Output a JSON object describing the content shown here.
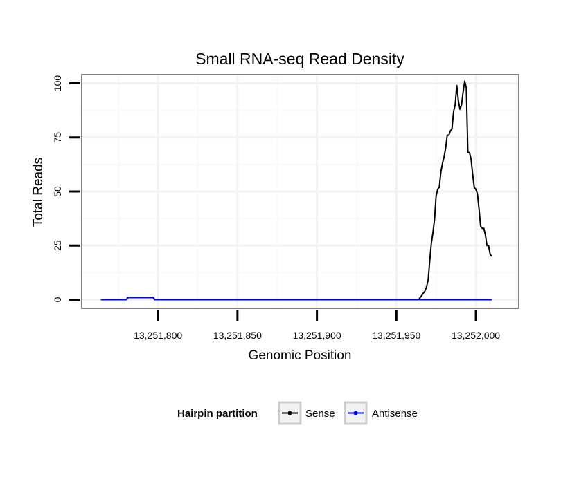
{
  "chart_data": {
    "type": "line",
    "title": "Small RNA-seq Read Density",
    "xlabel": "Genomic Position",
    "ylabel": "Total Reads",
    "xlim": [
      13251752,
      13252027
    ],
    "ylim": [
      -4,
      104
    ],
    "x_ticks": [
      13251800,
      13251850,
      13251900,
      13251950,
      13252000
    ],
    "x_tick_labels": [
      "13,251,800",
      "13,251,850",
      "13,251,900",
      "13,251,950",
      "13,252,000"
    ],
    "y_ticks": [
      0,
      25,
      50,
      75,
      100
    ],
    "y_tick_labels": [
      "0",
      "25",
      "50",
      "75",
      "100"
    ],
    "grid": true,
    "legend": {
      "title": "Hairpin partition",
      "placement": "bottom",
      "entries": [
        "Sense",
        "Antisense"
      ]
    },
    "series": [
      {
        "name": "Sense",
        "color": "#000000",
        "x": [
          13251764,
          13251780,
          13251781,
          13251797,
          13251798,
          13251964,
          13251965,
          13251966,
          13251967,
          13251968,
          13251969,
          13251970,
          13251971,
          13251972,
          13251973,
          13251974,
          13251975,
          13251976,
          13251977,
          13251978,
          13251979,
          13251980,
          13251981,
          13251982,
          13251983,
          13251984,
          13251985,
          13251986,
          13251987,
          13251988,
          13251989,
          13251990,
          13251991,
          13251992,
          13251993,
          13251994,
          13251995,
          13251996,
          13251997,
          13251998,
          13251999,
          13252000,
          13252001,
          13252002,
          13252003,
          13252004,
          13252005,
          13252006,
          13252007,
          13252008,
          13252009,
          13252010
        ],
        "y": [
          0,
          0,
          1,
          1,
          0,
          0,
          1,
          2,
          3,
          4,
          6,
          9,
          18,
          26,
          31,
          37,
          48,
          51,
          52,
          59,
          63,
          66,
          70,
          76,
          76,
          78,
          79,
          87,
          90,
          99,
          92,
          88,
          90,
          96,
          101,
          98,
          68,
          68,
          65,
          58,
          52,
          51,
          49,
          42,
          34,
          33,
          33,
          30,
          25,
          25,
          21,
          20
        ]
      },
      {
        "name": "Antisense",
        "color": "#0000ff",
        "x": [
          13251764,
          13251780,
          13251781,
          13251797,
          13251798,
          13252010
        ],
        "y": [
          0,
          0,
          1,
          1,
          0,
          0
        ]
      }
    ]
  }
}
